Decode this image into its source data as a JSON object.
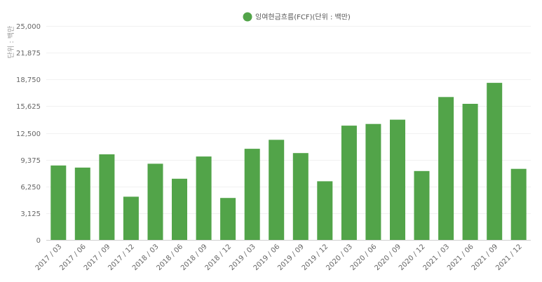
{
  "chart_data": {
    "type": "bar",
    "legend": "잉여현금흐름(FCF)(단위 : 백만)",
    "ylabel": "단위 : 백만",
    "color": "#52a449",
    "ylim": [
      0,
      25000
    ],
    "yticks": [
      0,
      3125,
      6250,
      9375,
      12500,
      15625,
      18750,
      21875,
      25000
    ],
    "ytick_labels": [
      "0",
      "3,125",
      "6,250",
      "9,375",
      "12,500",
      "15,625",
      "18,750",
      "21,875",
      "25,000"
    ],
    "categories": [
      "2017 / 03",
      "2017 / 06",
      "2017 / 09",
      "2017 / 12",
      "2018 / 03",
      "2018 / 06",
      "2018 / 09",
      "2018 / 12",
      "2019 / 03",
      "2019 / 06",
      "2019 / 09",
      "2019 / 12",
      "2020 / 03",
      "2020 / 06",
      "2020 / 09",
      "2020 / 12",
      "2021 / 03",
      "2021 / 06",
      "2021 / 09",
      "2021 / 12"
    ],
    "values": [
      8700,
      8450,
      10000,
      5050,
      8900,
      7150,
      9750,
      4900,
      10650,
      11700,
      10150,
      6850,
      13350,
      13550,
      14050,
      8050,
      16700,
      15900,
      18350,
      8300
    ],
    "grid": true,
    "legend_position": "top-center"
  }
}
